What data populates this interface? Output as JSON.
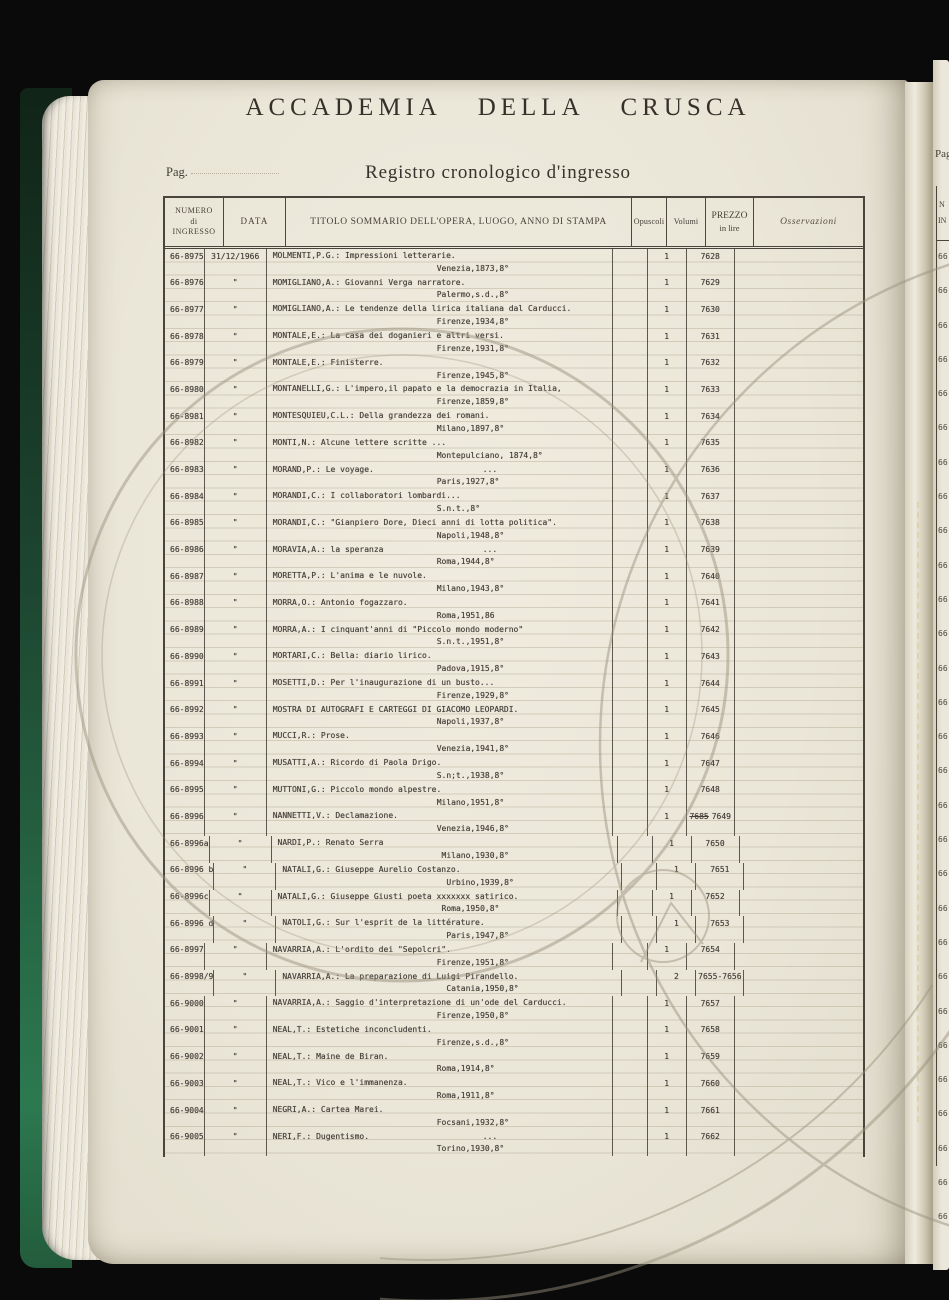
{
  "book": {
    "page_label": "Pag.",
    "title": "ACCADEMIA DELLA CRUSCA",
    "subtitle": "Registro cronologico d'ingresso"
  },
  "table": {
    "headers": {
      "numero_l1": "NUMERO",
      "numero_l2": "di",
      "numero_l3": "INGRESSO",
      "data": "DATA",
      "titolo": "TITOLO SOMMARIO DELL'OPERA, LUOGO, ANNO DI STAMPA",
      "opuscoli": "Opuscoli",
      "volumi": "Volumi",
      "prezzo_l1": "PREZZO",
      "prezzo_l2": "in lire",
      "osservazioni": "Osservazioni"
    },
    "rows": [
      {
        "num": "66-8975",
        "date": "31/12/1966",
        "title": "MOLMENTI,P.G.: Impressioni letterarie.",
        "place": "Venezia,1873,8°",
        "dots": "",
        "volumi": "1",
        "prezzo_struck": "",
        "prezzo": "7628"
      },
      {
        "num": "66-8976",
        "date": "\"",
        "title": "MOMIGLIANO,A.: Giovanni Verga narratore.",
        "place": "Palermo,s.d.,8°",
        "dots": "",
        "volumi": "1",
        "prezzo_struck": "",
        "prezzo": "7629"
      },
      {
        "num": "66-8977",
        "date": "\"",
        "title": "MOMIGLIANO,A.: Le tendenze della lirica italiana dal Carducci.",
        "place": "Firenze,1934,8°",
        "dots": "",
        "volumi": "1",
        "prezzo_struck": "",
        "prezzo": "7630"
      },
      {
        "num": "66-8978",
        "date": "\"",
        "title": "MONTALE,E.: La casa dei doganieri e altri versi.",
        "place": "Firenze,1931,8°",
        "dots": "",
        "volumi": "1",
        "prezzo_struck": "",
        "prezzo": "7631"
      },
      {
        "num": "66-8979",
        "date": "\"",
        "title": "MONTALE,E.: Finisterre.",
        "place": "Firenze,1945,8°",
        "dots": "",
        "volumi": "1",
        "prezzo_struck": "",
        "prezzo": "7632"
      },
      {
        "num": "66-8980",
        "date": "\"",
        "title": "MONTANELLI,G.: L'impero,il papato e la democrazia in Italia,",
        "place": "Firenze,1859,8°",
        "dots": "",
        "volumi": "1",
        "prezzo_struck": "",
        "prezzo": "7633"
      },
      {
        "num": "66-8981",
        "date": "\"",
        "title": "MONTESQUIEU,C.L.: Della grandezza dei romani.",
        "place": "Milano,1897,8°",
        "dots": "",
        "volumi": "1",
        "prezzo_struck": "",
        "prezzo": "7634"
      },
      {
        "num": "66-8982",
        "date": "\"",
        "title": "MONTI,N.: Alcune lettere scritte ...",
        "place": "Montepulciano, 1874,8°",
        "dots": "",
        "volumi": "1",
        "prezzo_struck": "",
        "prezzo": "7635"
      },
      {
        "num": "66-8983",
        "date": "\"",
        "title": "MORAND,P.: Le voyage.",
        "place": "Paris,1927,8°",
        "dots": "...",
        "volumi": "1",
        "prezzo_struck": "",
        "prezzo": "7636"
      },
      {
        "num": "66-8984",
        "date": "\"",
        "title": "MORANDI,C.: I collaboratori lombardi...",
        "place": "S.n.t.,8°",
        "dots": "",
        "volumi": "1",
        "prezzo_struck": "",
        "prezzo": "7637"
      },
      {
        "num": "66-8985",
        "date": "\"",
        "title": "MORANDI,C.: \"Gianpiero Dore, Dieci anni di lotta politica\".",
        "place": "Napoli,1948,8°",
        "dots": "",
        "volumi": "1",
        "prezzo_struck": "",
        "prezzo": "7638"
      },
      {
        "num": "66-8986",
        "date": "\"",
        "title": "MORAVIA,A.: la speranza",
        "place": "Roma,1944,8°",
        "dots": "...",
        "volumi": "1",
        "prezzo_struck": "",
        "prezzo": "7639"
      },
      {
        "num": "66-8987",
        "date": "\"",
        "title": "MORETTA,P.: L'anima e le nuvole.",
        "place": "Milano,1943,8°",
        "dots": "",
        "volumi": "1",
        "prezzo_struck": "",
        "prezzo": "7640"
      },
      {
        "num": "66-8988",
        "date": "\"",
        "title": "MORRA,O.: Antonio fogazzaro.",
        "place": "Roma,1951,86",
        "dots": "",
        "volumi": "1",
        "prezzo_struck": "",
        "prezzo": "7641"
      },
      {
        "num": "66-8989",
        "date": "\"",
        "title": "MORRA,A.: I cinquant'anni di \"Piccolo mondo moderno\"",
        "place": "S.n.t.,1951,8°",
        "dots": "",
        "volumi": "1",
        "prezzo_struck": "",
        "prezzo": "7642"
      },
      {
        "num": "66-8990",
        "date": "\"",
        "title": "MORTARI,C.: Bella: diario lirico.",
        "place": "Padova,1915,8°",
        "dots": "",
        "volumi": "1",
        "prezzo_struck": "",
        "prezzo": "7643"
      },
      {
        "num": "66-8991",
        "date": "\"",
        "title": "MOSETTI,D.: Per l'inaugurazione di un busto...",
        "place": "Firenze,1929,8°",
        "dots": "",
        "volumi": "1",
        "prezzo_struck": "",
        "prezzo": "7644"
      },
      {
        "num": "66-8992",
        "date": "\"",
        "title": "MOSTRA DI AUTOGRAFI E CARTEGGI DI GIACOMO LEOPARDI.",
        "place": "Napoli,1937,8°",
        "dots": "",
        "volumi": "1",
        "prezzo_struck": "",
        "prezzo": "7645"
      },
      {
        "num": "66-8993",
        "date": "\"",
        "title": "MUCCI,R.: Prose.",
        "place": "Venezia,1941,8°",
        "dots": "",
        "volumi": "1",
        "prezzo_struck": "",
        "prezzo": "7646"
      },
      {
        "num": "66-8994",
        "date": "\"",
        "title": "MUSATTI,A.: Ricordo di Paola Drigo.",
        "place": "S.n;t.,1938,8°",
        "dots": "",
        "volumi": "1",
        "prezzo_struck": "",
        "prezzo": "7647"
      },
      {
        "num": "66-8995",
        "date": "\"",
        "title": "MUTTONI,G.: Piccolo mondo alpestre.",
        "place": "Milano,1951,8°",
        "dots": "",
        "volumi": "1",
        "prezzo_struck": "",
        "prezzo": "7648"
      },
      {
        "num": "66-8996",
        "date": "\"",
        "title": "NANNETTI,V.: Declamazione.",
        "place": "Venezia,1946,8°",
        "dots": "",
        "volumi": "1",
        "prezzo_struck": "7685",
        "prezzo": "7649"
      },
      {
        "num": "66-8996a",
        "date": "\"",
        "title": "NARDI,P.: Renato Serra",
        "place": "Milano,1930,8°",
        "dots": "",
        "volumi": "1",
        "prezzo_struck": "",
        "prezzo": "7650"
      },
      {
        "num": "66-8996 b",
        "date": "\"",
        "title": "NATALI,G.: Giuseppe Aurelio Costanzo.",
        "place": "Urbino,1939,8°",
        "dots": "",
        "volumi": "1",
        "prezzo_struck": "",
        "prezzo": "7651"
      },
      {
        "num": "66-8996c",
        "date": "\"",
        "title": "NATALI,G.: Giuseppe Giusti poeta xxxxxxx satirico.",
        "place": "Roma,1950,8°",
        "dots": "",
        "volumi": "1",
        "prezzo_struck": "",
        "prezzo": "7652"
      },
      {
        "num": "66-8996 d",
        "date": "\"",
        "title": "NATOLI,G.: Sur l'esprit de la littérature.",
        "place": "Paris,1947,8°",
        "dots": "",
        "volumi": "1",
        "prezzo_struck": "",
        "prezzo": "7653"
      },
      {
        "num": "66-8997",
        "date": "\"",
        "title": "NAVARRIA,A.: L'ordito dei \"Sepolcri\".",
        "place": "Firenze,1951,8°",
        "dots": "",
        "volumi": "1",
        "prezzo_struck": "",
        "prezzo": "7654"
      },
      {
        "num": "66-8998/9",
        "date": "\"",
        "title": "NAVARRIA,A.: La preparazione di Luigi Pirandello.",
        "place": "Catania,1950,8°",
        "dots": "",
        "volumi": "2",
        "prezzo_struck": "",
        "prezzo": "7655-7656"
      },
      {
        "num": "66-9000",
        "date": "\"",
        "title": "NAVARRIA,A.: Saggio d'interpretazione di un'ode del Carducci.",
        "place": "Firenze,1950,8°",
        "dots": "",
        "volumi": "1",
        "prezzo_struck": "",
        "prezzo": "7657"
      },
      {
        "num": "66-9001",
        "date": "\"",
        "title": "NEAL,T.: Estetiche inconcludenti.",
        "place": "Firenze,s.d.,8°",
        "dots": "",
        "volumi": "1",
        "prezzo_struck": "",
        "prezzo": "7658"
      },
      {
        "num": "66-9002",
        "date": "\"",
        "title": "NEAL,T.: Maine de Biran.",
        "place": "Roma,1914,8°",
        "dots": "",
        "volumi": "1",
        "prezzo_struck": "",
        "prezzo": "7659"
      },
      {
        "num": "66-9003",
        "date": "\"",
        "title": "NEAL,T.: Vico e l'immanenza.",
        "place": "Roma,1911,8°",
        "dots": "",
        "volumi": "1",
        "prezzo_struck": "",
        "prezzo": "7660"
      },
      {
        "num": "66-9004",
        "date": "\"",
        "title": "NEGRI,A.: Cartea Marei.",
        "place": "Focsani,1932,8°",
        "dots": "",
        "volumi": "1",
        "prezzo_struck": "",
        "prezzo": "7661"
      },
      {
        "num": "66-9005",
        "date": "\"",
        "title": "NERI,F.: Dugentismo.",
        "place": "Torino,1930,8°",
        "dots": "...",
        "volumi": "1",
        "prezzo_struck": "",
        "prezzo": "7662"
      }
    ]
  },
  "next_page": {
    "page_label": "Pag-",
    "header_l1": "N",
    "header_l2": "IN",
    "row_fragments": [
      "66",
      "66",
      "66",
      "66",
      "66",
      "66",
      "66",
      "66",
      "66",
      "66",
      "66",
      "66",
      "66",
      "66",
      "66",
      "66",
      "66",
      "66",
      "66",
      "66",
      "66",
      "66",
      "66",
      "66",
      "66",
      "66",
      "66",
      "66",
      "66"
    ]
  },
  "colors": {
    "background": "#0a0a0a",
    "cover_green": "#2c7950",
    "paper": "#ebe7da",
    "ink_typed": "#45403a",
    "rule": "#49443c"
  }
}
